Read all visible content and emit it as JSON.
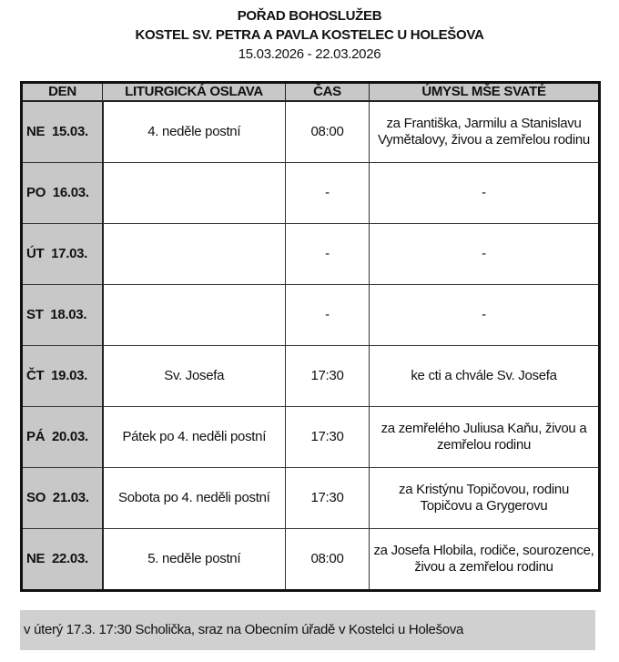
{
  "title1": "POŘAD BOHOSLUŽEB",
  "title2": "KOSTEL SV. PETRA A PAVLA KOSTELEC U HOLEŠOVA",
  "dates": "15.03.2026 - 22.03.2026",
  "headers": [
    "DEN",
    "LITURGICKÁ OSLAVA",
    "ČAS",
    "ÚMYSL MŠE SVATÉ"
  ],
  "rows": [
    {
      "day": "NE  15.03.",
      "celebration": "4. neděle postní",
      "time": "08:00",
      "intention": "za Františka, Jarmilu a Stanislavu Vymětalovy, živou a zemřelou rodinu"
    },
    {
      "day": "PO  16.03.",
      "celebration": "",
      "time": "-",
      "intention": "-"
    },
    {
      "day": "ÚT  17.03.",
      "celebration": "",
      "time": "-",
      "intention": "-"
    },
    {
      "day": "ST  18.03.",
      "celebration": "",
      "time": "-",
      "intention": "-"
    },
    {
      "day": "ČT  19.03.",
      "celebration": "Sv. Josefa",
      "time": "17:30",
      "intention": "ke cti a chvále Sv. Josefa"
    },
    {
      "day": "PÁ  20.03.",
      "celebration": "Pátek po 4. neděli postní",
      "time": "17:30",
      "intention": "za zemřelého Juliusa Kaňu, živou a zemřelou rodinu"
    },
    {
      "day": "SO  21.03.",
      "celebration": "Sobota po 4. neděli postní",
      "time": "17:30",
      "intention": "za Kristýnu Topičovou, rodinu Topičovu a Grygerovu"
    },
    {
      "day": "NE  22.03.",
      "celebration": "5. neděle postní",
      "time": "08:00",
      "intention": "za Josefa Hlobila, rodiče, sourozence, živou a zemřelou rodinu"
    }
  ],
  "note": "v úterý 17.3. 17:30 Scholička, sraz na Obecním úřadě v Kostelci u Holešova"
}
